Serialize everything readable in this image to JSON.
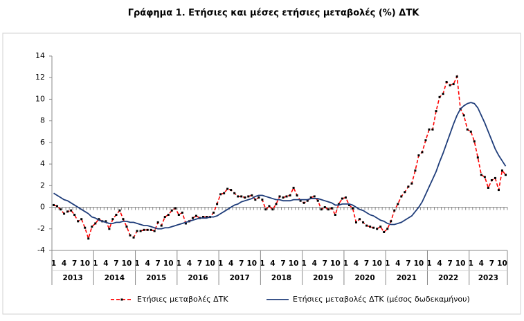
{
  "chart_data": {
    "type": "line",
    "title": "Γράφημα 1. Ετήσιες και μέσες ετήσιες μεταβολές (%) ΔΤΚ",
    "categories": [
      "1",
      null,
      null,
      "4",
      null,
      null,
      "7",
      null,
      null,
      "10",
      null,
      null,
      "1",
      null,
      null,
      "4",
      null,
      null,
      "7",
      null,
      null,
      "10",
      null,
      null,
      "1",
      null,
      null,
      "4",
      null,
      null,
      "7",
      null,
      null,
      "10",
      null,
      null,
      "1",
      null,
      null,
      "4",
      null,
      null,
      "7",
      null,
      null,
      "10",
      null,
      null,
      "1",
      null,
      null,
      "4",
      null,
      null,
      "7",
      null,
      null,
      "10",
      null,
      null,
      "1",
      null,
      null,
      "4",
      null,
      null,
      "7",
      null,
      null,
      "10",
      null,
      null,
      "1",
      null,
      null,
      "4",
      null,
      null,
      "7",
      null,
      null,
      "10",
      null,
      null,
      "1",
      null,
      null,
      "4",
      null,
      null,
      "7",
      null,
      null,
      "10",
      null,
      null,
      "1",
      null,
      null,
      "4",
      null,
      null,
      "7",
      null,
      null,
      "10",
      null,
      null,
      "1",
      null,
      null,
      "4",
      null,
      null,
      "7",
      null,
      null,
      "10",
      null,
      null,
      "1",
      null,
      null,
      "4",
      null,
      null,
      "7",
      null,
      null,
      "10",
      null
    ],
    "years": [
      "2013",
      "2014",
      "2015",
      "2016",
      "2017",
      "2018",
      "2019",
      "2020",
      "2021",
      "2022",
      "2023"
    ],
    "series": [
      {
        "name": "Ετήσιες μεταβολές ΔΤΚ",
        "color": "#ff0000",
        "marker_color": "#000000",
        "dashed": true,
        "values": [
          0.2,
          0.1,
          -0.2,
          -0.6,
          -0.4,
          -0.3,
          -0.7,
          -1.3,
          -1.1,
          -1.9,
          -2.9,
          -1.8,
          -1.5,
          -1.1,
          -1.3,
          -1.3,
          -2.0,
          -1.1,
          -0.7,
          -0.3,
          -1.1,
          -1.8,
          -2.6,
          -2.8,
          -2.2,
          -2.2,
          -2.1,
          -2.1,
          -2.1,
          -2.2,
          -1.4,
          -1.7,
          -0.9,
          -0.7,
          -0.3,
          -0.1,
          -0.7,
          -0.5,
          -1.5,
          -1.3,
          -1.0,
          -0.8,
          -1.0,
          -0.9,
          -0.9,
          -0.9,
          -0.5,
          0.3,
          1.2,
          1.3,
          1.7,
          1.6,
          1.3,
          1.0,
          1.0,
          0.9,
          1.0,
          1.1,
          0.7,
          0.9,
          0.7,
          -0.2,
          0.1,
          -0.2,
          0.3,
          1.0,
          0.9,
          1.0,
          1.1,
          1.8,
          1.1,
          0.6,
          0.4,
          0.6,
          0.9,
          1.0,
          0.6,
          -0.2,
          0.0,
          -0.2,
          -0.1,
          -0.7,
          0.3,
          0.8,
          0.9,
          0.2,
          -0.1,
          -1.4,
          -1.1,
          -1.4,
          -1.7,
          -1.8,
          -1.9,
          -2.0,
          -1.8,
          -2.3,
          -2.0,
          -1.3,
          -0.3,
          0.3,
          1.0,
          1.4,
          1.9,
          2.2,
          3.4,
          4.8,
          5.1,
          6.2,
          7.2,
          7.2,
          8.9,
          10.2,
          10.5,
          11.6,
          11.3,
          11.4,
          12.1,
          9.1,
          8.5,
          7.2,
          7.0,
          6.1,
          4.6,
          3.0,
          2.8,
          1.8,
          2.5,
          2.7,
          1.6,
          3.4,
          3.0
        ]
      },
      {
        "name": "Ετήσιες μεταβολές ΔΤΚ (μέσος δωδεκαμήνου)",
        "color": "#1f3d7a",
        "dashed": false,
        "values": [
          1.3,
          1.1,
          0.9,
          0.7,
          0.6,
          0.4,
          0.2,
          0.0,
          -0.2,
          -0.4,
          -0.6,
          -0.9,
          -1.0,
          -1.2,
          -1.3,
          -1.4,
          -1.5,
          -1.5,
          -1.4,
          -1.4,
          -1.3,
          -1.3,
          -1.4,
          -1.4,
          -1.5,
          -1.6,
          -1.7,
          -1.7,
          -1.8,
          -1.9,
          -2.0,
          -2.0,
          -1.9,
          -1.9,
          -1.8,
          -1.7,
          -1.6,
          -1.5,
          -1.4,
          -1.3,
          -1.2,
          -1.1,
          -1.0,
          -1.0,
          -1.0,
          -0.9,
          -0.9,
          -0.8,
          -0.6,
          -0.4,
          -0.2,
          0.0,
          0.2,
          0.3,
          0.5,
          0.6,
          0.7,
          0.8,
          1.0,
          1.1,
          1.1,
          1.0,
          0.9,
          0.8,
          0.7,
          0.7,
          0.6,
          0.6,
          0.6,
          0.7,
          0.7,
          0.7,
          0.7,
          0.7,
          0.8,
          0.8,
          0.8,
          0.7,
          0.6,
          0.5,
          0.4,
          0.2,
          0.2,
          0.3,
          0.3,
          0.3,
          0.2,
          0.0,
          -0.2,
          -0.3,
          -0.5,
          -0.7,
          -0.8,
          -1.0,
          -1.2,
          -1.3,
          -1.5,
          -1.6,
          -1.6,
          -1.5,
          -1.4,
          -1.2,
          -1.0,
          -0.8,
          -0.4,
          0.0,
          0.5,
          1.2,
          1.9,
          2.6,
          3.3,
          4.2,
          5.0,
          5.9,
          6.8,
          7.7,
          8.5,
          9.1,
          9.4,
          9.6,
          9.7,
          9.6,
          9.2,
          8.5,
          7.8,
          7.0,
          6.2,
          5.4,
          4.8,
          4.3,
          3.8
        ]
      }
    ],
    "ylim": [
      -4,
      14
    ],
    "yticks": [
      -4,
      -2,
      0,
      2,
      4,
      6,
      8,
      10,
      12,
      14
    ],
    "grid": false
  }
}
